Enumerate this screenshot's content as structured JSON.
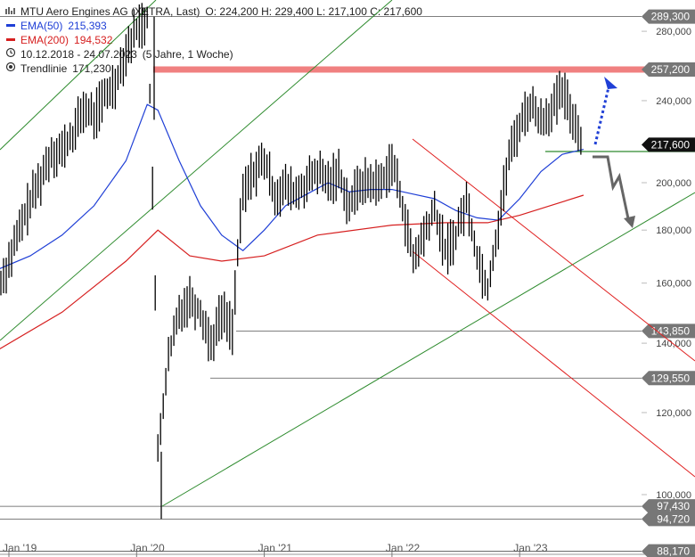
{
  "legend": {
    "title": "MTU Aero Engines AG (XETRA, Last)",
    "ohlc": "O: 224,200  H: 229,400  L: 217,100  C: 217,600",
    "ema50_label": "EMA(50)",
    "ema50_value": "215,393",
    "ema200_label": "EMA(200)",
    "ema200_value": "194,532",
    "range": "10.12.2018 - 24.07.2023",
    "period": "(5 Jahre, 1 Woche)",
    "trend_label": "Trendlinie",
    "trend_value": "171,230"
  },
  "colors": {
    "price": "#000000",
    "ema50": "#1f3fd6",
    "ema200": "#d61f1f",
    "trend_green": "#2e8b2e",
    "trend_red": "#e02020",
    "resistance_band": "#f08080",
    "arrow_up": "#1f3fd6",
    "arrow_down": "#666666"
  },
  "chart_data": {
    "type": "line",
    "yscale": "log",
    "ylim": [
      88.17,
      300
    ],
    "y_ticks": [
      100,
      120,
      140,
      160,
      180,
      200,
      240,
      280
    ],
    "y_tick_labels": [
      "100,000",
      "120,000",
      "140,000",
      "160,000",
      "180,000",
      "200,000",
      "240,000",
      "280,000"
    ],
    "x_ticks": [
      "Jan '19",
      "Jan '20",
      "Jan '21",
      "Jan '22",
      "Jan '23"
    ],
    "horizontal_levels": [
      {
        "value": 289.3,
        "label": "289,300"
      },
      {
        "value": 257.2,
        "label": "257,200",
        "style": "resistance-band"
      },
      {
        "value": 143.85,
        "label": "143,850"
      },
      {
        "value": 129.55,
        "label": "129,550"
      },
      {
        "value": 97.43,
        "label": "97,430"
      },
      {
        "value": 94.72,
        "label": "94,720"
      },
      {
        "value": 88.17,
        "label": "88,170"
      }
    ],
    "last_price": {
      "value": 217.6,
      "label": "217,600"
    },
    "series": [
      {
        "name": "MTU Aero Engines AG",
        "x": [
          "2018-12",
          "2019-01",
          "2019-02",
          "2019-03",
          "2019-04",
          "2019-05",
          "2019-06",
          "2019-07",
          "2019-08",
          "2019-09",
          "2019-10",
          "2019-11",
          "2019-12",
          "2020-01",
          "2020-02",
          "2020-03",
          "2020-04",
          "2020-05",
          "2020-06",
          "2020-07",
          "2020-08",
          "2020-09",
          "2020-10",
          "2020-11",
          "2020-12",
          "2021-01",
          "2021-02",
          "2021-03",
          "2021-04",
          "2021-05",
          "2021-06",
          "2021-07",
          "2021-08",
          "2021-09",
          "2021-10",
          "2021-11",
          "2021-12",
          "2022-01",
          "2022-02",
          "2022-03",
          "2022-04",
          "2022-05",
          "2022-06",
          "2022-07",
          "2022-08",
          "2022-09",
          "2022-10",
          "2022-11",
          "2022-12",
          "2023-01",
          "2023-02",
          "2023-03",
          "2023-04",
          "2023-05",
          "2023-06",
          "2023-07"
        ],
        "values": [
          158,
          168,
          180,
          192,
          202,
          214,
          215,
          222,
          236,
          232,
          242,
          250,
          268,
          282,
          288,
          110,
          135,
          150,
          155,
          150,
          140,
          150,
          145,
          195,
          205,
          210,
          195,
          198,
          195,
          200,
          205,
          200,
          205,
          190,
          200,
          200,
          200,
          210,
          190,
          168,
          178,
          188,
          172,
          178,
          192,
          170,
          158,
          182,
          212,
          228,
          238,
          230,
          235,
          245,
          232,
          217.6
        ]
      },
      {
        "name": "EMA(50)",
        "x": [
          "2018-12",
          "2019-03",
          "2019-06",
          "2019-09",
          "2019-12",
          "2020-02",
          "2020-03",
          "2020-05",
          "2020-07",
          "2020-09",
          "2020-11",
          "2021-01",
          "2021-03",
          "2021-05",
          "2021-07",
          "2021-09",
          "2021-11",
          "2022-01",
          "2022-03",
          "2022-05",
          "2022-07",
          "2022-09",
          "2022-11",
          "2023-01",
          "2023-03",
          "2023-05",
          "2023-07"
        ],
        "values": [
          165,
          170,
          178,
          190,
          210,
          238,
          235,
          210,
          190,
          178,
          172,
          180,
          190,
          195,
          200,
          196,
          197,
          197,
          195,
          193,
          188,
          185,
          184,
          193,
          205,
          213,
          215.393
        ]
      },
      {
        "name": "EMA(200)",
        "x": [
          "2018-12",
          "2019-06",
          "2019-12",
          "2020-03",
          "2020-06",
          "2020-09",
          "2021-01",
          "2021-06",
          "2022-01",
          "2022-06",
          "2022-10",
          "2023-01",
          "2023-07"
        ],
        "values": [
          138,
          150,
          168,
          180,
          170,
          168,
          170,
          178,
          182,
          183,
          183,
          186,
          194.532
        ]
      }
    ]
  }
}
